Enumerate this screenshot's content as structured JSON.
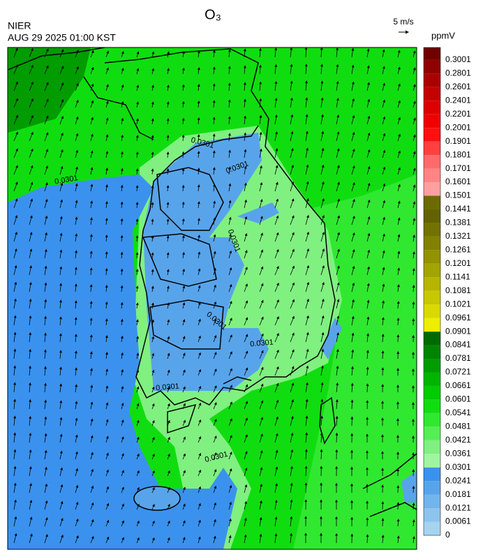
{
  "header": {
    "title": "O₃",
    "source": "NIER",
    "datetime": "AUG 29 2025 01:00 KST",
    "wind_scale": "5 m/s"
  },
  "colorbar": {
    "unit": "ppmV",
    "levels": [
      0,
      0.0061,
      0.0121,
      0.0181,
      0.0241,
      0.0301,
      0.0361,
      0.0421,
      0.0481,
      0.0541,
      0.0601,
      0.0661,
      0.0721,
      0.0781,
      0.0841,
      0.0901,
      0.0961,
      0.1021,
      0.1081,
      0.1141,
      0.1201,
      0.1261,
      0.1321,
      0.1381,
      0.1441,
      0.1501,
      0.1601,
      0.1701,
      0.1801,
      0.1901,
      0.2001,
      0.2201,
      0.2401,
      0.2601,
      0.2801,
      0.3001
    ],
    "colors": [
      "#a6d4f0",
      "#8cc4ee",
      "#72b4ec",
      "#58a4ea",
      "#3a92ee",
      "#a0f5a0",
      "#80f080",
      "#55ee55",
      "#30e830",
      "#10dd10",
      "#00cc00",
      "#00b400",
      "#009c00",
      "#008400",
      "#006a00",
      "#eeee00",
      "#dada00",
      "#c8c800",
      "#b6b600",
      "#a4a400",
      "#939300",
      "#828200",
      "#727200",
      "#626200",
      "#6b6b00",
      "#ffa0a0",
      "#ff8585",
      "#ff6a6a",
      "#ff4040",
      "#ff1010",
      "#f00000",
      "#dc0000",
      "#c40000",
      "#aa0000",
      "#900000",
      "#700000"
    ]
  },
  "contour_labels": [
    "0.0301",
    "0.0301",
    "0.0301",
    "0.0301",
    "0.0301",
    "0.0301",
    "0.0301",
    "0.0301"
  ]
}
